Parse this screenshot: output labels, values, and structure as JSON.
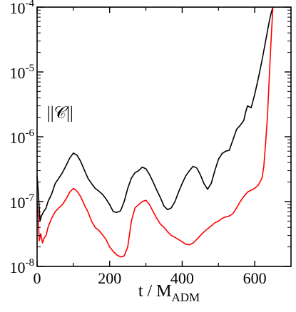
{
  "chart_data": {
    "type": "line",
    "xlabel": "t / M",
    "xlabel_sub": "ADM",
    "ylabel": "",
    "annotation": "||𝒞||",
    "xlim": [
      0,
      700
    ],
    "ylim": [
      1e-08,
      0.0001
    ],
    "yscale": "log",
    "grid": false,
    "x_ticks": [
      0,
      200,
      400,
      600
    ],
    "x_tick_labels": [
      "0",
      "200",
      "400",
      "600"
    ],
    "y_ticks": [
      {
        "value": 1e-08,
        "base": "10",
        "exp": "-8"
      },
      {
        "value": 1e-07,
        "base": "10",
        "exp": "-7"
      },
      {
        "value": 1e-06,
        "base": "10",
        "exp": "-6"
      },
      {
        "value": 1e-05,
        "base": "10",
        "exp": "-5"
      },
      {
        "value": 0.0001,
        "base": "10",
        "exp": "-4"
      }
    ],
    "series": [
      {
        "color": "#000000",
        "x": [
          0,
          3,
          8,
          12,
          18,
          25,
          30,
          40,
          50,
          60,
          70,
          80,
          90,
          100,
          110,
          120,
          130,
          140,
          150,
          160,
          170,
          180,
          190,
          200,
          210,
          220,
          230,
          240,
          250,
          260,
          270,
          280,
          290,
          300,
          310,
          320,
          330,
          340,
          350,
          360,
          370,
          380,
          390,
          400,
          410,
          420,
          430,
          440,
          450,
          460,
          470,
          480,
          490,
          500,
          510,
          520,
          530,
          540,
          550,
          560,
          570,
          575,
          580,
          590,
          600,
          610,
          620,
          630,
          640,
          645,
          650
        ],
        "y": [
          2.5e-07,
          1.5e-07,
          5e-08,
          6e-08,
          7e-08,
          8e-08,
          1e-07,
          1.3e-07,
          1.9e-07,
          2.3e-07,
          2.8e-07,
          3.6e-07,
          4.7e-07,
          5.6e-07,
          5.2e-07,
          4.2e-07,
          3.1e-07,
          2.3e-07,
          1.9e-07,
          1.6e-07,
          1.45e-07,
          1.3e-07,
          1.1e-07,
          9e-08,
          7e-08,
          6.8e-08,
          7.2e-08,
          1e-07,
          1.6e-07,
          2.3e-07,
          2.8e-07,
          3e-07,
          3.4e-07,
          3.2e-07,
          2.6e-07,
          2e-07,
          1.5e-07,
          1.15e-07,
          8.5e-08,
          7.5e-08,
          8e-08,
          1e-07,
          1.4e-07,
          1.9e-07,
          2.5e-07,
          3e-07,
          3.5e-07,
          3.3e-07,
          2.6e-07,
          1.9e-07,
          1.55e-07,
          1.9e-07,
          3e-07,
          4.5e-07,
          5.5e-07,
          6e-07,
          6.2e-07,
          9e-07,
          1.3e-06,
          1.5e-06,
          1.8e-06,
          2.4e-06,
          3e-06,
          2.8e-06,
          4.5e-06,
          8e-06,
          1.5e-05,
          3e-05,
          6e-05,
          8e-05,
          0.0001
        ]
      },
      {
        "color": "#ff0000",
        "x": [
          0,
          3,
          6,
          10,
          15,
          20,
          25,
          30,
          40,
          50,
          60,
          70,
          80,
          90,
          100,
          110,
          120,
          130,
          140,
          150,
          160,
          170,
          180,
          190,
          200,
          210,
          220,
          230,
          240,
          250,
          260,
          270,
          280,
          290,
          300,
          310,
          320,
          330,
          340,
          350,
          360,
          370,
          380,
          390,
          400,
          410,
          420,
          430,
          440,
          450,
          460,
          470,
          480,
          490,
          500,
          510,
          520,
          530,
          540,
          550,
          560,
          570,
          580,
          590,
          600,
          610,
          620,
          625,
          630,
          635,
          640,
          645,
          650
        ],
        "y": [
          1e-07,
          6e-08,
          2.5e-08,
          3.2e-08,
          2.3e-08,
          2.8e-08,
          3e-08,
          4e-08,
          5.5e-08,
          7e-08,
          8e-08,
          9e-08,
          1.1e-07,
          1.4e-07,
          1.6e-07,
          1.45e-07,
          1.2e-07,
          9e-08,
          7e-08,
          5e-08,
          4e-08,
          3.6e-08,
          3.1e-08,
          2.6e-08,
          2e-08,
          1.7e-08,
          1.5e-08,
          1.4e-08,
          1.45e-08,
          2e-08,
          5e-08,
          8e-08,
          9e-08,
          1e-07,
          1.05e-07,
          9e-08,
          7e-08,
          5.5e-08,
          4.5e-08,
          4e-08,
          3.4e-08,
          3e-08,
          2.8e-08,
          2.6e-08,
          2.4e-08,
          2.2e-08,
          2.15e-08,
          2.3e-08,
          2.6e-08,
          3e-08,
          3.4e-08,
          3.8e-08,
          4.2e-08,
          4.7e-08,
          5e-08,
          5.5e-08,
          5.8e-08,
          6e-08,
          6.5e-08,
          8e-08,
          1e-07,
          1.2e-07,
          1.4e-07,
          1.5e-07,
          1.6e-07,
          1.8e-07,
          2.3e-07,
          3.5e-07,
          8e-07,
          2e-06,
          8e-06,
          3e-05,
          0.0001
        ]
      }
    ]
  }
}
